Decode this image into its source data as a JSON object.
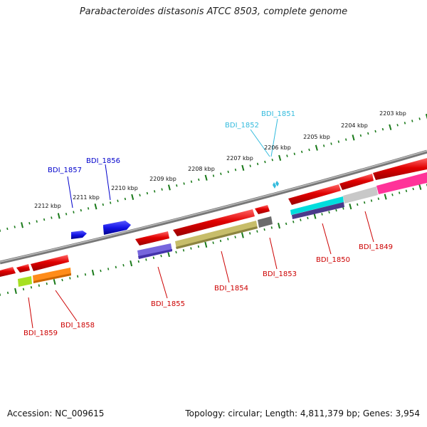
{
  "title": "Parabacteroides distasonis ATCC 8503, complete genome",
  "accession": "Accession: NC_009615",
  "stats": "Topology: circular; Length: 4,811,379 bp; Genes: 3,954",
  "colors": {
    "forward_gene": "#1414e6",
    "reverse_gene": "#e00000",
    "ticks": "#1a7a1a",
    "backbone": "#808080",
    "label_red": "#cc0000",
    "label_blue": "#0000cc",
    "label_cyan": "#33bbdd"
  },
  "kbp_ticks": [
    "2203 kbp",
    "2204 kbp",
    "2205 kbp",
    "2206 kbp",
    "2207 kbp",
    "2208 kbp",
    "2209 kbp",
    "2210 kbp",
    "2211 kbp",
    "2212 kbp"
  ],
  "gene_labels": [
    "BDI_1849",
    "BDI_1850",
    "BDI_1851",
    "BDI_1852",
    "BDI_1853",
    "BDI_1854",
    "BDI_1855",
    "BDI_1856",
    "BDI_1857",
    "BDI_1858",
    "BDI_1859"
  ]
}
